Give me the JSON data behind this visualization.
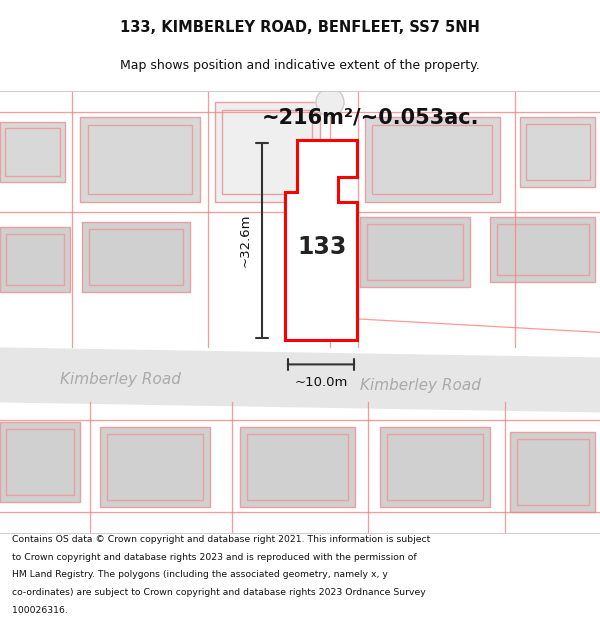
{
  "title_line1": "133, KIMBERLEY ROAD, BENFLEET, SS7 5NH",
  "title_line2": "Map shows position and indicative extent of the property.",
  "area_text": "~216m²/~0.053ac.",
  "label_133": "133",
  "dim_width": "~10.0m",
  "dim_height": "~32.6m",
  "road_label_left": "Kimberley Road",
  "road_label_right": "Kimberley Road",
  "footer_lines": [
    "Contains OS data © Crown copyright and database right 2021. This information is subject",
    "to Crown copyright and database rights 2023 and is reproduced with the permission of",
    "HM Land Registry. The polygons (including the associated geometry, namely x, y",
    "co-ordinates) are subject to Crown copyright and database rights 2023 Ordnance Survey",
    "100026316."
  ],
  "bg_color": "#ffffff",
  "map_bg": "#f8f8f8",
  "road_color": "#e8e8e8",
  "building_fill": "#d8d8d8",
  "building_edge": "#e8a0a0",
  "highlight_fill": "#ffffff",
  "highlight_edge": "#ff0000",
  "dim_color": "#333333",
  "road_text_color": "#aaaaaa",
  "title_map_split": 0.854,
  "map_foot_split": 0.148
}
